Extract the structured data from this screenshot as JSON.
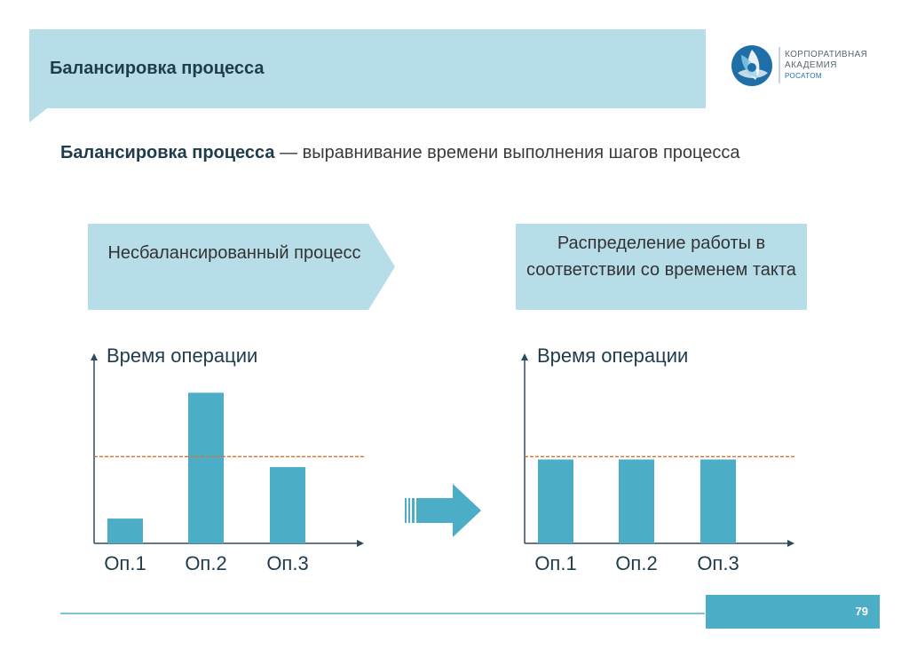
{
  "header": {
    "title": "Балансировка процесса",
    "logo": {
      "line1": "КОРПОРАТИВНАЯ",
      "line2": "АКАДЕМИЯ",
      "line3": "РОСАТОМ",
      "icon": "rosatom-atom-icon"
    }
  },
  "definition": {
    "term": "Балансировка процесса",
    "rest": " — выравнивание времени выполнения шагов процесса"
  },
  "labels": {
    "unbalanced": "Несбалансированный процесс",
    "distribution": "Распределение работы в соответствии со временем такта"
  },
  "colors": {
    "bar": "#4badc6",
    "takt_line": "#e0702a",
    "panel": "#b7dde9",
    "title_text": "#1f3c4c"
  },
  "chart_data": [
    {
      "type": "bar",
      "ylabel": "Время операции",
      "categories": [
        "Оп.1",
        "Оп.2",
        "Оп.3"
      ],
      "values": [
        1.3,
        7.9,
        4.0
      ],
      "takt_time": 4.55,
      "ylim": [
        0,
        9.5
      ],
      "grid": false
    },
    {
      "type": "bar",
      "ylabel": "Время операции",
      "categories": [
        "Оп.1",
        "Оп.2",
        "Оп.3"
      ],
      "values": [
        4.4,
        4.4,
        4.4
      ],
      "takt_time": 4.55,
      "ylim": [
        0,
        9.5
      ],
      "grid": false
    }
  ],
  "footer": {
    "page_number": "79"
  }
}
